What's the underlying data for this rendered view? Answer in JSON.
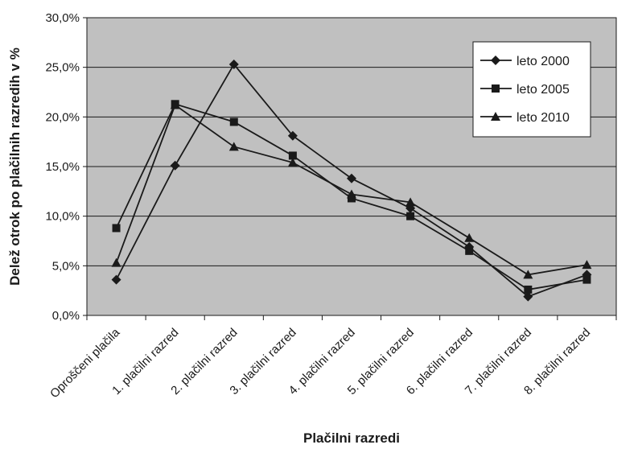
{
  "chart_data": {
    "type": "line",
    "title": "",
    "xlabel": "Plačilni razredi",
    "ylabel": "Delež otrok po plačilnih razredih v %",
    "categories": [
      "Oproščeni plačila",
      "1. plačilni razred",
      "2. plačilni razred",
      "3. plačilni razred",
      "4. plačilni razred",
      "5. plačilni razred",
      "6. plačilni razred",
      "7. plačilni razred",
      "8. plačilni razred"
    ],
    "ylim": [
      0,
      30
    ],
    "yticks": [
      0,
      5,
      10,
      15,
      20,
      25,
      30
    ],
    "ytick_labels": [
      "0,0%",
      "5,0%",
      "10,0%",
      "15,0%",
      "20,0%",
      "25,0%",
      "30,0%"
    ],
    "grid": true,
    "legend_position": "top-right",
    "plot_background": "#c0c0c0",
    "line_color": "#1a1a1a",
    "series": [
      {
        "name": "leto 2000",
        "marker": "diamond",
        "values": [
          3.6,
          15.1,
          25.3,
          18.1,
          13.8,
          10.8,
          6.9,
          1.9,
          4.1
        ]
      },
      {
        "name": "leto 2005",
        "marker": "square",
        "values": [
          8.8,
          21.3,
          19.5,
          16.1,
          11.8,
          10.0,
          6.5,
          2.6,
          3.6
        ]
      },
      {
        "name": "leto 2010",
        "marker": "triangle",
        "values": [
          5.3,
          21.2,
          17.0,
          15.4,
          12.2,
          11.4,
          7.8,
          4.1,
          5.1
        ]
      }
    ]
  }
}
